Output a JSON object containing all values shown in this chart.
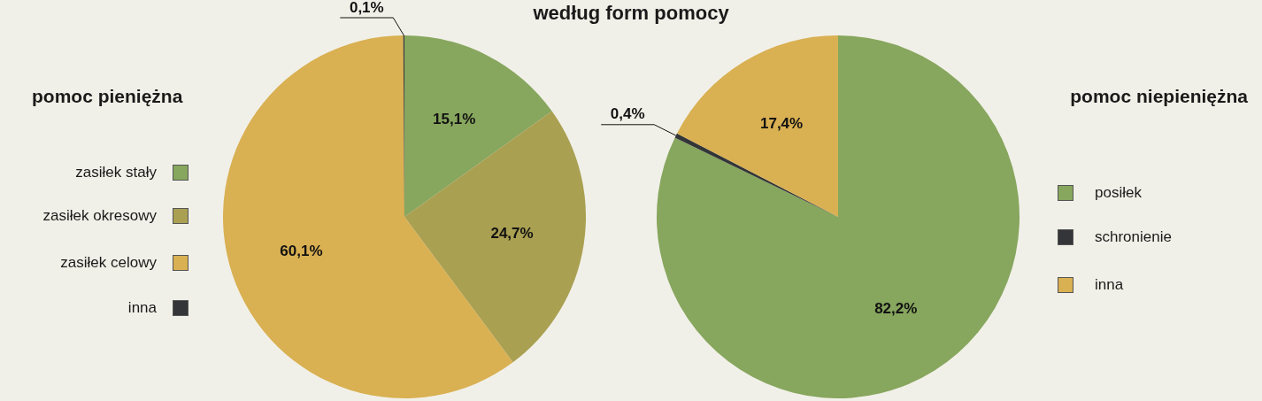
{
  "chart_data": [
    {
      "type": "pie",
      "title": "pomoc pieniężna",
      "annotations": [
        "według form pomocy"
      ],
      "categories": [
        "zasiłek stały",
        "zasiłek okresowy",
        "zasiłek celowy",
        "inna"
      ],
      "values": [
        15.1,
        24.7,
        60.1,
        0.1
      ],
      "value_labels": [
        "15,1%",
        "24,7%",
        "60,1%",
        "0,1%"
      ],
      "colors": [
        "#87a65e",
        "#aaa052",
        "#d9b052",
        "#333538"
      ],
      "legend": "left"
    },
    {
      "type": "pie",
      "title": "pomoc niepieniężna",
      "categories": [
        "posiłek",
        "schronienie",
        "inna"
      ],
      "values": [
        82.2,
        0.4,
        17.4
      ],
      "value_labels": [
        "82,2%",
        "0,4%",
        "17,4%"
      ],
      "colors": [
        "#87a65e",
        "#333538",
        "#d9b052"
      ],
      "legend": "right"
    }
  ]
}
